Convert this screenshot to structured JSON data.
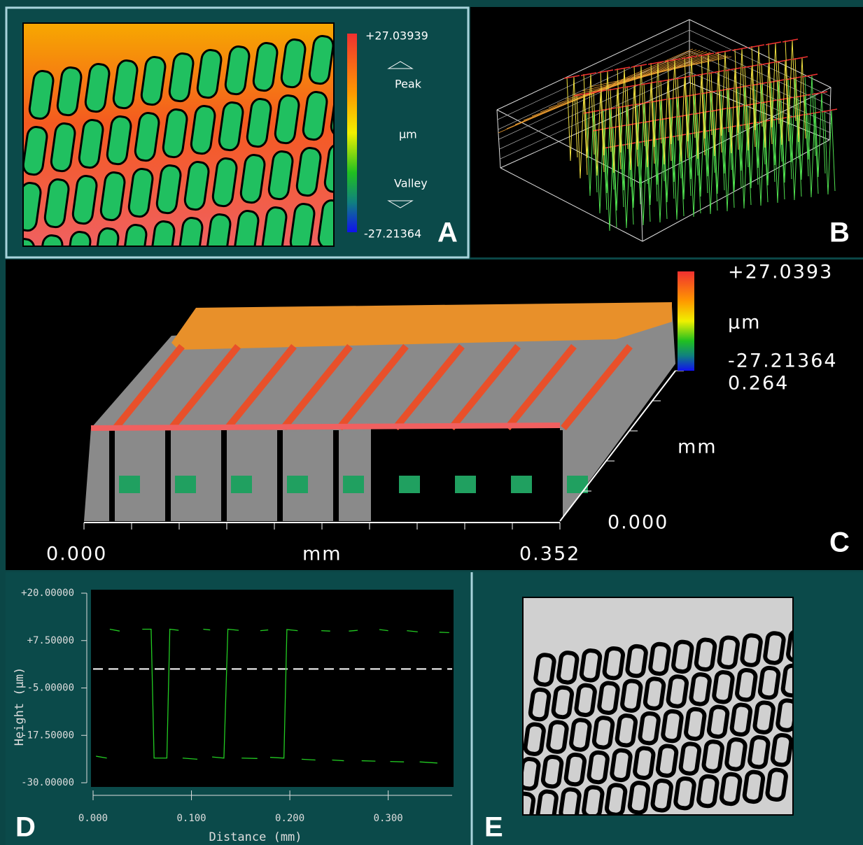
{
  "panel_a": {
    "label": "A",
    "scale_max": "+27.03939",
    "peak": "Peak",
    "unit": "µm",
    "valley": "Valley",
    "scale_min": "-27.21364"
  },
  "panel_b": {
    "label": "B"
  },
  "panel_c": {
    "label": "C",
    "scale_max": "+27.0393",
    "unit": "µm",
    "scale_min": "-27.21364",
    "y_max": "0.264",
    "y_unit": "mm",
    "y_min": "0.000",
    "x_min": "0.000",
    "x_unit": "mm",
    "x_max": "0.352"
  },
  "panel_d": {
    "label": "D"
  },
  "panel_e": {
    "label": "E"
  },
  "chart_data": {
    "type": "line",
    "xlabel": "Distance (mm)",
    "ylabel": "Height (µm)",
    "xlim": [
      0,
      0.365
    ],
    "ylim": [
      -30,
      20
    ],
    "xticks": [
      {
        "value": 0,
        "label": "0.000"
      },
      {
        "value": 0.1,
        "label": "0.100"
      },
      {
        "value": 0.2,
        "label": "0.200"
      },
      {
        "value": 0.3,
        "label": "0.300"
      }
    ],
    "yticks": [
      {
        "value": 20,
        "label": "+20.00000"
      },
      {
        "value": 7.5,
        "label": "+7.50000"
      },
      {
        "value": -5,
        "label": "-5.00000"
      },
      {
        "value": -17.5,
        "label": "-17.50000"
      },
      {
        "value": -30,
        "label": "-30.00000"
      }
    ],
    "reference_line": 0,
    "x": [
      0.003,
      0.014,
      null,
      0.017,
      0.027,
      null,
      0.05,
      0.059,
      0.062,
      0.075,
      0.078,
      0.087,
      null,
      0.091,
      0.106,
      null,
      0.112,
      0.119,
      null,
      0.121,
      0.133,
      0.137,
      0.148,
      null,
      0.151,
      0.167,
      null,
      0.17,
      0.178,
      null,
      0.18,
      0.194,
      0.197,
      0.208,
      null,
      0.212,
      0.226,
      null,
      0.232,
      0.241,
      null,
      0.243,
      0.255,
      null,
      0.26,
      0.269,
      null,
      0.273,
      0.287,
      null,
      0.291,
      0.3,
      null,
      0.302,
      0.316,
      null,
      0.319,
      0.33,
      null,
      0.332,
      0.35,
      null,
      0.352,
      0.362
    ],
    "series": [
      {
        "color": "#22cc22",
        "values": [
          -23,
          -23.5,
          null,
          10.5,
          10,
          null,
          10.5,
          10.5,
          -23.5,
          -23.5,
          10.5,
          10.2,
          null,
          -23.5,
          -23.8,
          null,
          10.5,
          10.3,
          null,
          -23.2,
          -23.5,
          10.5,
          10.2,
          null,
          -23.5,
          -23.6,
          null,
          10.1,
          10.3,
          null,
          -23.3,
          -23.5,
          10.4,
          10.1,
          null,
          -23.8,
          -24,
          null,
          10.1,
          10,
          null,
          -24,
          -24.2,
          null,
          10,
          10.2,
          null,
          -24.2,
          -24.3,
          null,
          10.4,
          10.1,
          null,
          -24.4,
          -24.5,
          null,
          10.1,
          9.8,
          null,
          -24.5,
          -24.8,
          null,
          9.7,
          9.6
        ]
      }
    ]
  }
}
